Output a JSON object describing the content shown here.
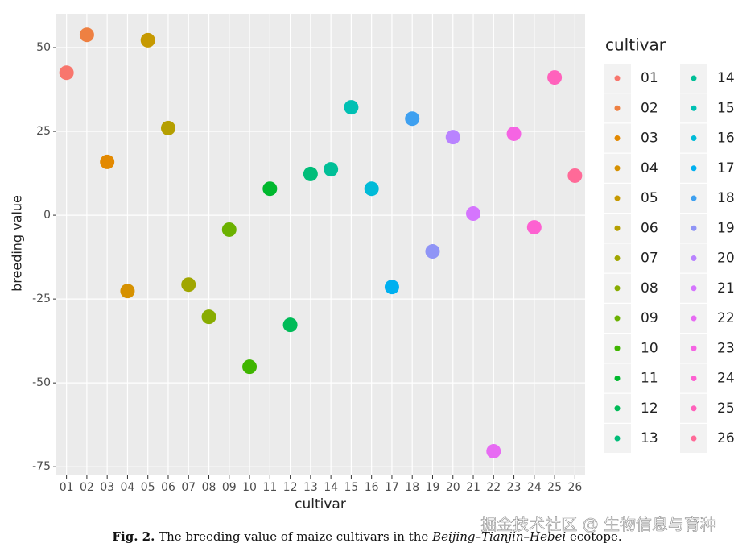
{
  "chart_data": {
    "type": "scatter",
    "x_label": "cultivar",
    "y_label": "breeding value",
    "legend_title": "cultivar",
    "categories": [
      "01",
      "02",
      "03",
      "04",
      "05",
      "06",
      "07",
      "08",
      "09",
      "10",
      "11",
      "12",
      "13",
      "14",
      "15",
      "16",
      "17",
      "18",
      "19",
      "20",
      "21",
      "22",
      "23",
      "24",
      "25",
      "26"
    ],
    "values": [
      42.5,
      53.8,
      15.9,
      -22.6,
      52.2,
      26,
      -20.7,
      -30.3,
      -4.3,
      -45.2,
      7.9,
      -32.7,
      12.3,
      13.7,
      32.2,
      7.9,
      -21.4,
      28.8,
      -10.8,
      23.3,
      0.5,
      -70.4,
      24.3,
      -3.6,
      41.1,
      11.8
    ],
    "colors": [
      "#F8766D",
      "#EE8042",
      "#E38900",
      "#D69100",
      "#C69900",
      "#B59F00",
      "#A0A600",
      "#88AC00",
      "#6BB100",
      "#3FB500",
      "#00B82E",
      "#00BB58",
      "#00BD79",
      "#00BF97",
      "#00C0B3",
      "#00BBD8",
      "#00B0F0",
      "#3EA0F0",
      "#8F94F6",
      "#B983FF",
      "#D575FE",
      "#E76BF3",
      "#F564E3",
      "#FD61D1",
      "#FF62BC",
      "#FF6A98"
    ],
    "ylim": [
      -77.6,
      60.1
    ],
    "yticks": [
      -75,
      -50,
      -25,
      0,
      25,
      50
    ],
    "grid": true
  },
  "caption": {
    "label": "Fig. 2.",
    "before": "The breeding value of maize cultivars in the",
    "italic": "Beijing–Tianjin–Hebei",
    "after": "ecotope."
  },
  "watermark": "掘金技术社区 @ 生物信息与育种"
}
